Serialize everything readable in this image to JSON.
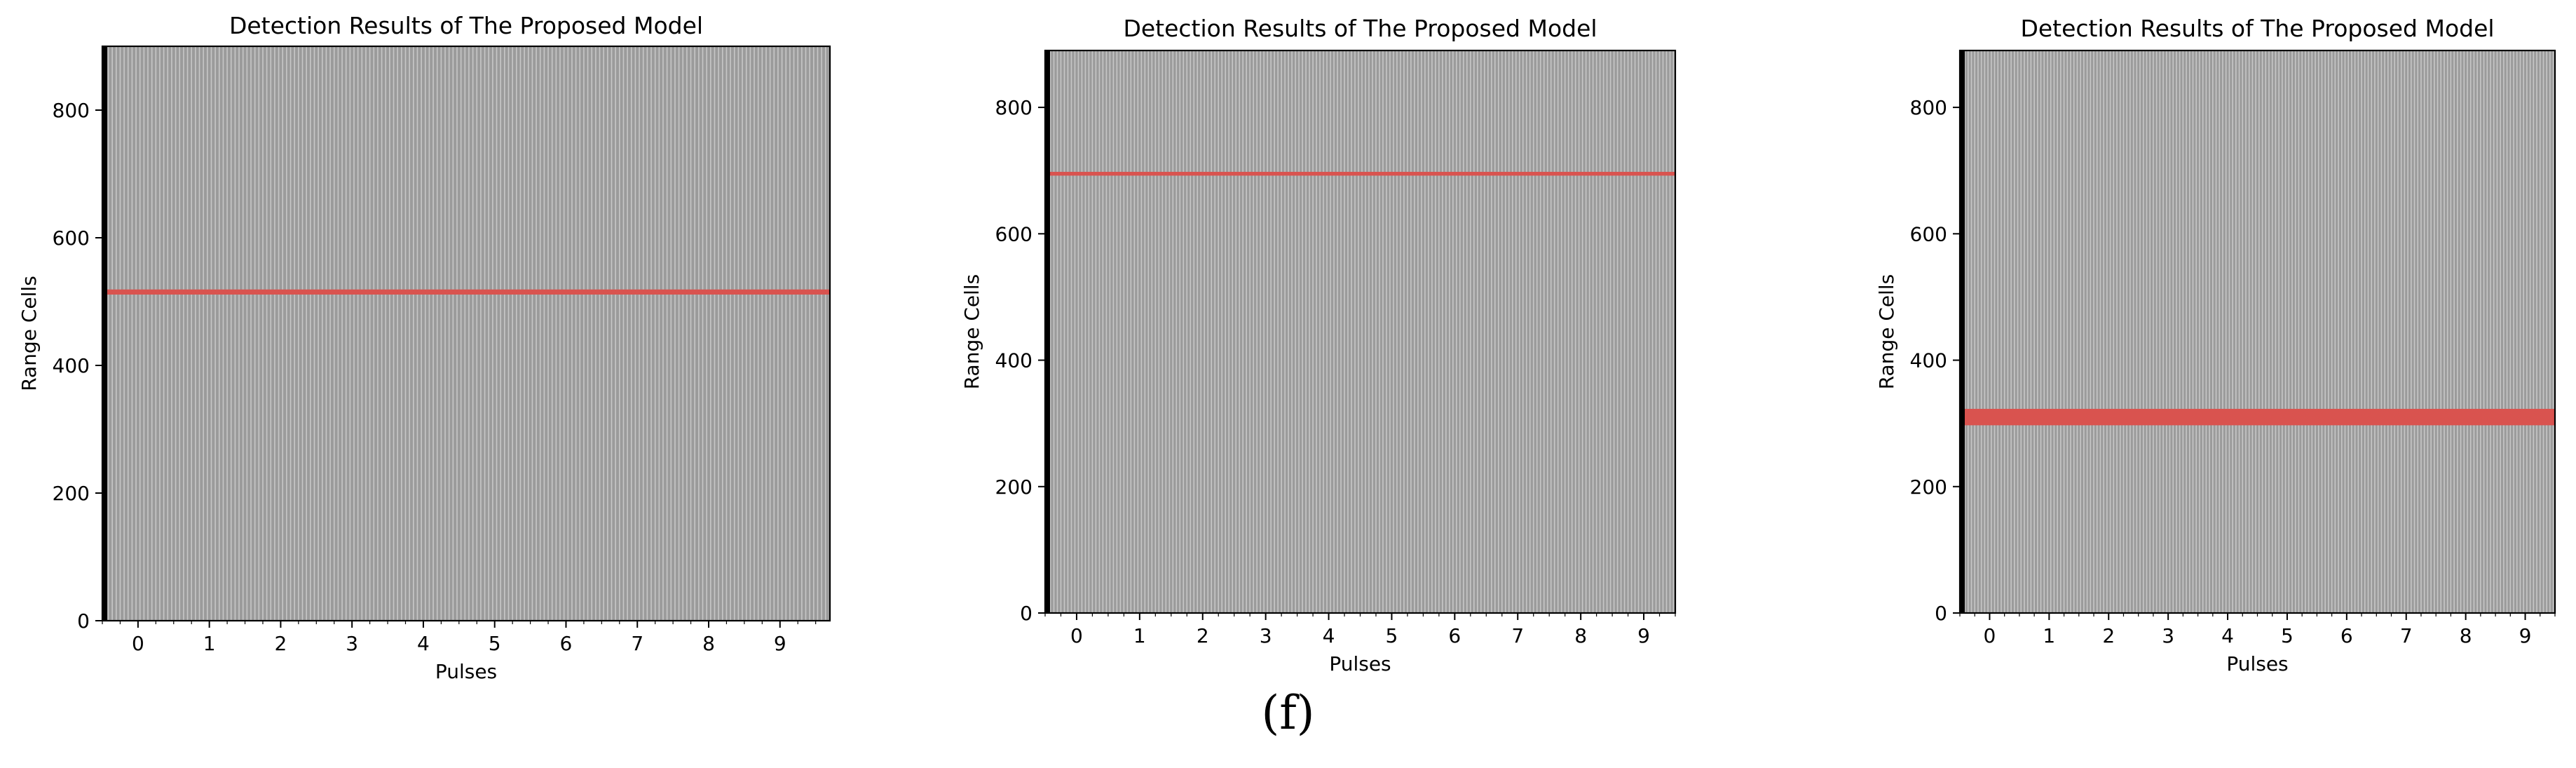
{
  "caption": "(f)",
  "colors": {
    "cell_background": "#9b9b9b",
    "cell_line": "#d6d6d6",
    "detection": "#d9534f",
    "frame": "#000000"
  },
  "chart_data": [
    {
      "type": "heatmap",
      "title": "Detection Results of The Proposed Model",
      "xlabel": "Pulses",
      "ylabel": "Range Cells",
      "x_ticks": [
        0,
        1,
        2,
        3,
        4,
        5,
        6,
        7,
        8,
        9
      ],
      "y_ticks": [
        0,
        200,
        400,
        600,
        800
      ],
      "xlim": [
        -0.5,
        9.7
      ],
      "ylim": [
        0,
        900
      ],
      "detections": [
        {
          "range_center": 515,
          "range_width": 8
        }
      ]
    },
    {
      "type": "heatmap",
      "title": "Detection Results of The Proposed Model",
      "xlabel": "Pulses",
      "ylabel": "Range Cells",
      "x_ticks": [
        0,
        1,
        2,
        3,
        4,
        5,
        6,
        7,
        8,
        9
      ],
      "y_ticks": [
        0,
        200,
        400,
        600,
        800
      ],
      "xlim": [
        -0.5,
        9.5
      ],
      "ylim": [
        0,
        890
      ],
      "detections": [
        {
          "range_center": 695,
          "range_width": 6
        }
      ]
    },
    {
      "type": "heatmap",
      "title": "Detection Results of The Proposed Model",
      "xlabel": "Pulses",
      "ylabel": "Range Cells",
      "x_ticks": [
        0,
        1,
        2,
        3,
        4,
        5,
        6,
        7,
        8,
        9
      ],
      "y_ticks": [
        0,
        200,
        400,
        600,
        800
      ],
      "xlim": [
        -0.5,
        9.5
      ],
      "ylim": [
        0,
        890
      ],
      "detections": [
        {
          "range_center": 310,
          "range_width": 26
        }
      ]
    }
  ]
}
